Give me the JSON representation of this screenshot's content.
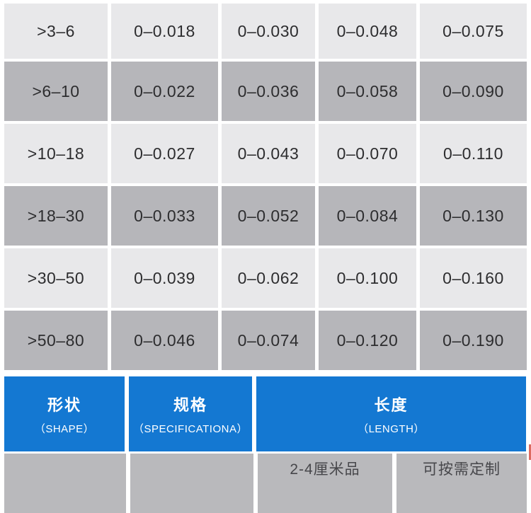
{
  "colors": {
    "row_light": "#e8e8ea",
    "row_dark": "#b6b6ba",
    "header_blue": "#1478d2",
    "value_text": "#2d2d2f",
    "header_text": "#ffffff"
  },
  "tolerance_table": {
    "rows": [
      {
        "shade": "light",
        "cells": [
          ">3–6",
          "0–0.018",
          "0–0.030",
          "0–0.048",
          "0–0.075"
        ]
      },
      {
        "shade": "dark",
        "cells": [
          ">6–10",
          "0–0.022",
          "0–0.036",
          "0–0.058",
          "0–0.090"
        ]
      },
      {
        "shade": "light",
        "cells": [
          ">10–18",
          "0–0.027",
          "0–0.043",
          "0–0.070",
          "0–0.110"
        ]
      },
      {
        "shade": "dark",
        "cells": [
          ">18–30",
          "0–0.033",
          "0–0.052",
          "0–0.084",
          "0–0.130"
        ]
      },
      {
        "shade": "light",
        "cells": [
          ">30–50",
          "0–0.039",
          "0–0.062",
          "0–0.100",
          "0–0.160"
        ]
      },
      {
        "shade": "dark",
        "cells": [
          ">50–80",
          "0–0.046",
          "0–0.074",
          "0–0.120",
          "0–0.190"
        ]
      }
    ]
  },
  "spec_header": {
    "columns": [
      {
        "zh": "形状",
        "en": "（SHAPE）"
      },
      {
        "zh": "规格",
        "en": "（SPECIFICATIONA）"
      },
      {
        "zh": "长度",
        "en": "（LENGTH）"
      }
    ]
  },
  "partial_row": {
    "cells": [
      "",
      "",
      "2-4厘米品",
      "可按需定制"
    ]
  }
}
